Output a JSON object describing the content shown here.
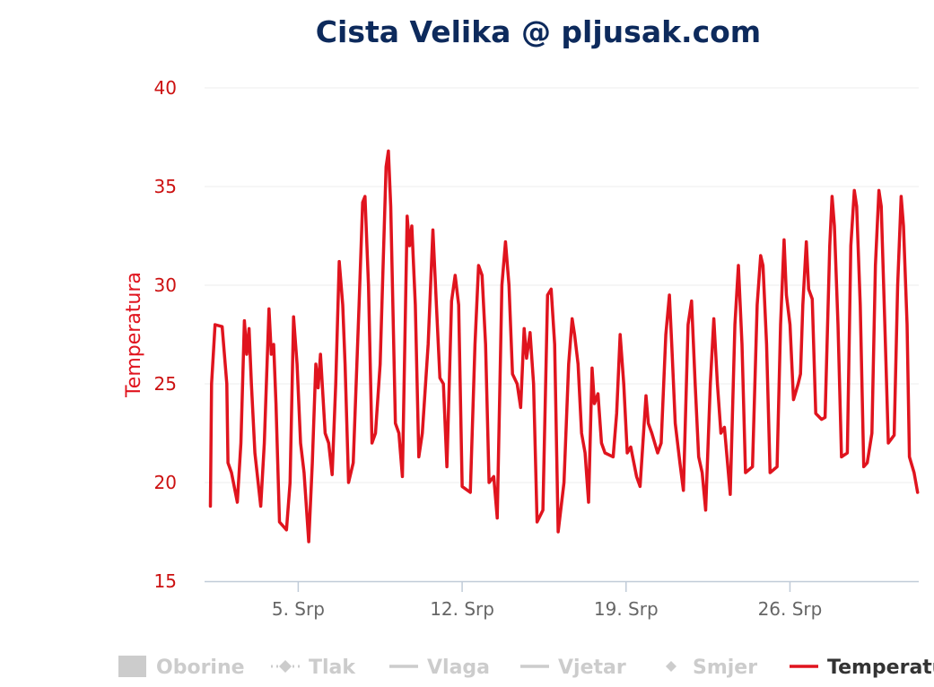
{
  "chart_data": {
    "type": "line",
    "title": "Cista Velika @ pljusak.com",
    "ylabel": "Temperatura",
    "ylim": [
      15,
      40
    ],
    "yticks": [
      "15",
      "20",
      "25",
      "30",
      "35",
      "40"
    ],
    "xticks": [
      {
        "label": "5. Srp",
        "day": 5
      },
      {
        "label": "12. Srp",
        "day": 12
      },
      {
        "label": "19. Srp",
        "day": 19
      },
      {
        "label": "26. Srp",
        "day": 26
      }
    ],
    "xrange_days": [
      1.0,
      31.5
    ],
    "grid": true,
    "legend": {
      "position": "bottom",
      "items": [
        {
          "label": "Oborine",
          "symbol": "rect",
          "active": false
        },
        {
          "label": "Tlak",
          "symbol": "dash-diamond",
          "active": false
        },
        {
          "label": "Vlaga",
          "symbol": "line",
          "active": false
        },
        {
          "label": "Vjetar",
          "symbol": "line",
          "active": false
        },
        {
          "label": "Smjer",
          "symbol": "diamond",
          "active": false
        },
        {
          "label": "Temperatura",
          "symbol": "line",
          "active": true
        }
      ]
    },
    "colors": {
      "series": "#e0141e",
      "title": "#0d2a5c",
      "inactive": "#cccccc"
    },
    "series": [
      {
        "name": "Temperatura",
        "points": [
          [
            1.25,
            18.8
          ],
          [
            1.3,
            25.0
          ],
          [
            1.45,
            28.0
          ],
          [
            1.75,
            27.9
          ],
          [
            1.95,
            25.0
          ],
          [
            2.0,
            21.0
          ],
          [
            2.15,
            20.5
          ],
          [
            2.4,
            19.0
          ],
          [
            2.55,
            22.0
          ],
          [
            2.7,
            28.2
          ],
          [
            2.8,
            26.5
          ],
          [
            2.9,
            27.8
          ],
          [
            3.0,
            25.0
          ],
          [
            3.15,
            21.5
          ],
          [
            3.4,
            18.8
          ],
          [
            3.55,
            22.0
          ],
          [
            3.75,
            28.8
          ],
          [
            3.85,
            26.5
          ],
          [
            3.95,
            27.0
          ],
          [
            4.05,
            24.0
          ],
          [
            4.2,
            18.0
          ],
          [
            4.5,
            17.6
          ],
          [
            4.65,
            20.0
          ],
          [
            4.8,
            28.4
          ],
          [
            4.95,
            26.0
          ],
          [
            5.1,
            22.0
          ],
          [
            5.25,
            20.5
          ],
          [
            5.45,
            17.0
          ],
          [
            5.6,
            21.0
          ],
          [
            5.75,
            26.0
          ],
          [
            5.85,
            24.8
          ],
          [
            5.95,
            26.5
          ],
          [
            6.15,
            22.5
          ],
          [
            6.3,
            22.0
          ],
          [
            6.45,
            20.4
          ],
          [
            6.6,
            25.0
          ],
          [
            6.75,
            31.2
          ],
          [
            6.9,
            29.0
          ],
          [
            7.0,
            26.0
          ],
          [
            7.15,
            20.0
          ],
          [
            7.35,
            21.0
          ],
          [
            7.6,
            29.0
          ],
          [
            7.75,
            34.2
          ],
          [
            7.85,
            34.5
          ],
          [
            8.0,
            30.0
          ],
          [
            8.15,
            22.0
          ],
          [
            8.3,
            22.5
          ],
          [
            8.5,
            26.0
          ],
          [
            8.75,
            36.0
          ],
          [
            8.85,
            36.8
          ],
          [
            8.95,
            34.0
          ],
          [
            9.15,
            23.0
          ],
          [
            9.3,
            22.5
          ],
          [
            9.45,
            20.3
          ],
          [
            9.65,
            33.5
          ],
          [
            9.75,
            32.0
          ],
          [
            9.85,
            33.0
          ],
          [
            10.0,
            29.0
          ],
          [
            10.15,
            21.3
          ],
          [
            10.3,
            22.5
          ],
          [
            10.55,
            27.0
          ],
          [
            10.75,
            32.8
          ],
          [
            10.9,
            29.0
          ],
          [
            11.05,
            25.3
          ],
          [
            11.2,
            25.0
          ],
          [
            11.35,
            20.8
          ],
          [
            11.55,
            29.2
          ],
          [
            11.7,
            30.5
          ],
          [
            11.85,
            29.0
          ],
          [
            12.0,
            19.8
          ],
          [
            12.35,
            19.5
          ],
          [
            12.55,
            27.0
          ],
          [
            12.7,
            31.0
          ],
          [
            12.85,
            30.5
          ],
          [
            13.0,
            27.0
          ],
          [
            13.15,
            20.0
          ],
          [
            13.35,
            20.3
          ],
          [
            13.5,
            18.2
          ],
          [
            13.7,
            30.0
          ],
          [
            13.85,
            32.2
          ],
          [
            14.0,
            30.0
          ],
          [
            14.15,
            25.5
          ],
          [
            14.35,
            25.0
          ],
          [
            14.5,
            23.8
          ],
          [
            14.65,
            27.8
          ],
          [
            14.75,
            26.3
          ],
          [
            14.9,
            27.6
          ],
          [
            15.05,
            25.0
          ],
          [
            15.2,
            18.0
          ],
          [
            15.45,
            18.6
          ],
          [
            15.65,
            29.5
          ],
          [
            15.8,
            29.8
          ],
          [
            15.95,
            27.0
          ],
          [
            16.1,
            17.5
          ],
          [
            16.35,
            20.0
          ],
          [
            16.55,
            26.0
          ],
          [
            16.7,
            28.3
          ],
          [
            16.8,
            27.5
          ],
          [
            16.95,
            26.0
          ],
          [
            17.1,
            22.5
          ],
          [
            17.25,
            21.5
          ],
          [
            17.4,
            19.0
          ],
          [
            17.55,
            25.8
          ],
          [
            17.65,
            24.0
          ],
          [
            17.8,
            24.5
          ],
          [
            17.95,
            22.0
          ],
          [
            18.1,
            21.5
          ],
          [
            18.45,
            21.3
          ],
          [
            18.6,
            23.5
          ],
          [
            18.75,
            27.5
          ],
          [
            18.9,
            25.0
          ],
          [
            19.05,
            21.5
          ],
          [
            19.2,
            21.8
          ],
          [
            19.45,
            20.3
          ],
          [
            19.6,
            19.8
          ],
          [
            19.85,
            24.4
          ],
          [
            19.95,
            23.0
          ],
          [
            20.1,
            22.5
          ],
          [
            20.35,
            21.5
          ],
          [
            20.5,
            22.0
          ],
          [
            20.7,
            27.5
          ],
          [
            20.85,
            29.5
          ],
          [
            20.95,
            27.0
          ],
          [
            21.1,
            23.0
          ],
          [
            21.3,
            21.0
          ],
          [
            21.45,
            19.6
          ],
          [
            21.65,
            28.0
          ],
          [
            21.8,
            29.2
          ],
          [
            21.95,
            25.0
          ],
          [
            22.1,
            21.3
          ],
          [
            22.25,
            20.5
          ],
          [
            22.4,
            18.6
          ],
          [
            22.6,
            25.0
          ],
          [
            22.75,
            28.3
          ],
          [
            22.9,
            25.0
          ],
          [
            23.05,
            22.5
          ],
          [
            23.2,
            22.8
          ],
          [
            23.45,
            19.4
          ],
          [
            23.65,
            28.0
          ],
          [
            23.8,
            31.0
          ],
          [
            23.95,
            27.0
          ],
          [
            24.1,
            20.5
          ],
          [
            24.4,
            20.8
          ],
          [
            24.6,
            29.0
          ],
          [
            24.75,
            31.5
          ],
          [
            24.85,
            31.0
          ],
          [
            25.0,
            27.0
          ],
          [
            25.15,
            20.5
          ],
          [
            25.45,
            20.8
          ],
          [
            25.6,
            28.0
          ],
          [
            25.75,
            32.3
          ],
          [
            25.85,
            29.5
          ],
          [
            26.0,
            28.0
          ],
          [
            26.15,
            24.2
          ],
          [
            26.35,
            25.0
          ],
          [
            26.45,
            25.5
          ],
          [
            26.55,
            29.0
          ],
          [
            26.7,
            32.2
          ],
          [
            26.8,
            29.8
          ],
          [
            26.95,
            29.3
          ],
          [
            27.1,
            23.5
          ],
          [
            27.35,
            23.2
          ],
          [
            27.5,
            23.3
          ],
          [
            27.7,
            32.0
          ],
          [
            27.8,
            34.5
          ],
          [
            27.9,
            33.0
          ],
          [
            28.05,
            28.0
          ],
          [
            28.2,
            21.3
          ],
          [
            28.45,
            21.5
          ],
          [
            28.6,
            32.0
          ],
          [
            28.75,
            34.8
          ],
          [
            28.85,
            34.0
          ],
          [
            29.0,
            29.0
          ],
          [
            29.15,
            20.8
          ],
          [
            29.3,
            21.0
          ],
          [
            29.5,
            22.5
          ],
          [
            29.65,
            31.0
          ],
          [
            29.8,
            34.8
          ],
          [
            29.9,
            34.0
          ],
          [
            30.05,
            28.0
          ],
          [
            30.2,
            22.0
          ],
          [
            30.45,
            22.4
          ],
          [
            30.6,
            30.0
          ],
          [
            30.75,
            34.5
          ],
          [
            30.85,
            33.0
          ],
          [
            31.0,
            28.0
          ],
          [
            31.1,
            21.3
          ],
          [
            31.3,
            20.5
          ],
          [
            31.45,
            19.5
          ]
        ]
      }
    ]
  }
}
